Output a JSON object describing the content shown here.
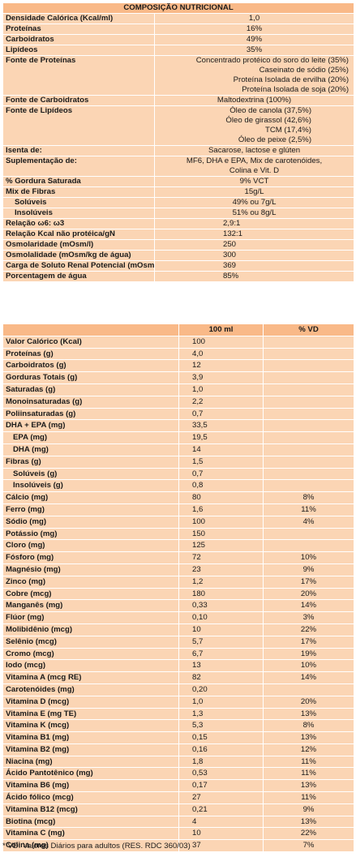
{
  "composition": {
    "title": "COMPOSIÇÃO NUTRICIONAL",
    "rows": [
      {
        "label": "Densidade Calórica (Kcal/ml)",
        "value": "1,0"
      },
      {
        "label": "Proteínas",
        "value": "16%"
      },
      {
        "label": "Carboidratos",
        "value": "49%"
      },
      {
        "label": "Lipídeos",
        "value": "35%"
      },
      {
        "label": "Fonte de Proteínas",
        "lines": [
          "Concentrado protéico do soro do leite (35%)",
          "Caseinato de sódio (25%)",
          "Proteína Isolada de ervilha (20%)",
          "Proteína Isolada de soja (20%)"
        ]
      },
      {
        "label": "Fonte de Carboidratos",
        "value": "Maltodextrina (100%)"
      },
      {
        "label": "Fonte de Lipídeos",
        "lines": [
          "Óleo de canola (37,5%)",
          "Óleo de girassol (42,6%)",
          "TCM (17,4%)",
          "Óleo de peixe (2,5%)"
        ]
      },
      {
        "label": "Isenta de:",
        "value": "Sacarose, lactose e glúten"
      },
      {
        "label": "Suplementação de:",
        "lines": [
          "MF6, DHA e EPA, Mix de carotenóides,",
          "Colina e Vit. D"
        ]
      },
      {
        "label": "% Gordura Saturada",
        "value": "9% VCT"
      },
      {
        "label": "Mix de Fibras",
        "value": "15g/L"
      },
      {
        "label": "Solúveis",
        "value": "49% ou 7g/L"
      },
      {
        "label": "Insolúveis",
        "value": "51% ou 8g/L"
      },
      {
        "label": "Relação ω6: ω3",
        "value": "2,9:1"
      },
      {
        "label": "Relação Kcal não protéica/gN",
        "value": "132:1"
      },
      {
        "label": "Osmolaridade (mOsm/l)",
        "value": "250"
      },
      {
        "label": "Osmolalidade (mOsm/kg de água)",
        "value": "300"
      },
      {
        "label": "Carga de Soluto Renal Potencial (mOsm/L)",
        "value": "369"
      },
      {
        "label": "Porcentagem de água",
        "value": "85%"
      }
    ]
  },
  "nutrition": {
    "headers": {
      "label": "",
      "amount": "100 ml",
      "vd": "% VD"
    },
    "rows": [
      {
        "label": "Valor Calórico (Kcal)",
        "amount": "100",
        "vd": ""
      },
      {
        "label": "Proteínas (g)",
        "amount": "4,0",
        "vd": ""
      },
      {
        "label": "Carboidratos (g)",
        "amount": "12",
        "vd": ""
      },
      {
        "label": "Gorduras Totais (g)",
        "amount": "3,9",
        "vd": ""
      },
      {
        "label": "Saturadas (g)",
        "amount": "1,0",
        "vd": ""
      },
      {
        "label": "Monoinsaturadas (g)",
        "amount": "2,2",
        "vd": ""
      },
      {
        "label": "Poliinsaturadas (g)",
        "amount": "0,7",
        "vd": ""
      },
      {
        "label": "DHA + EPA (mg)",
        "amount": "33,5",
        "vd": ""
      },
      {
        "label": "EPA (mg)",
        "amount": "19,5",
        "vd": ""
      },
      {
        "label": "DHA (mg)",
        "amount": "14",
        "vd": ""
      },
      {
        "label": "Fibras (g)",
        "amount": "1,5",
        "vd": ""
      },
      {
        "label": "Solúveis (g)",
        "amount": "0,7",
        "vd": ""
      },
      {
        "label": "Insolúveis (g)",
        "amount": "0,8",
        "vd": ""
      },
      {
        "label": "Cálcio (mg)",
        "amount": "80",
        "vd": "8%"
      },
      {
        "label": "Ferro (mg)",
        "amount": "1,6",
        "vd": "11%"
      },
      {
        "label": "Sódio (mg)",
        "amount": "100",
        "vd": "4%"
      },
      {
        "label": "Potássio (mg)",
        "amount": "150",
        "vd": ""
      },
      {
        "label": "Cloro (mg)",
        "amount": "125",
        "vd": ""
      },
      {
        "label": "Fósforo (mg)",
        "amount": "72",
        "vd": "10%"
      },
      {
        "label": "Magnésio (mg)",
        "amount": "23",
        "vd": "9%"
      },
      {
        "label": "Zinco (mg)",
        "amount": "1,2",
        "vd": "17%"
      },
      {
        "label": "Cobre (mcg)",
        "amount": "180",
        "vd": "20%"
      },
      {
        "label": "Manganês (mg)",
        "amount": "0,33",
        "vd": "14%"
      },
      {
        "label": "Flúor (mg)",
        "amount": "0,10",
        "vd": "3%"
      },
      {
        "label": "Molibidênio (mcg)",
        "amount": "10",
        "vd": "22%"
      },
      {
        "label": "Selênio (mcg)",
        "amount": "5,7",
        "vd": "17%"
      },
      {
        "label": "Cromo (mcg)",
        "amount": "6,7",
        "vd": "19%"
      },
      {
        "label": "Iodo (mcg)",
        "amount": "13",
        "vd": "10%"
      },
      {
        "label": "Vitamina A (mcg RE)",
        "amount": "82",
        "vd": "14%"
      },
      {
        "label": "Carotenóides (mg)",
        "amount": "0,20",
        "vd": ""
      },
      {
        "label": "Vitamina D (mcg)",
        "amount": "1,0",
        "vd": "20%"
      },
      {
        "label": "Vitamina E (mg TE)",
        "amount": "1,3",
        "vd": "13%"
      },
      {
        "label": "Vitamina K (mcg)",
        "amount": "5,3",
        "vd": "8%"
      },
      {
        "label": "Vitamina B1 (mg)",
        "amount": "0,15",
        "vd": "13%"
      },
      {
        "label": "Vitamina B2 (mg)",
        "amount": "0,16",
        "vd": "12%"
      },
      {
        "label": "Niacina (mg)",
        "amount": "1,8",
        "vd": "11%"
      },
      {
        "label": "Ácido Pantotênico (mg)",
        "amount": "0,53",
        "vd": "11%"
      },
      {
        "label": "Vitamina B6 (mg)",
        "amount": "0,17",
        "vd": "13%"
      },
      {
        "label": "Ácido fólico (mcg)",
        "amount": "27",
        "vd": "11%"
      },
      {
        "label": "Vitamina B12 (mcg)",
        "amount": "0,21",
        "vd": "9%"
      },
      {
        "label": "Biotina (mcg)",
        "amount": "4",
        "vd": "13%"
      },
      {
        "label": "Vitamina C (mg)",
        "amount": "10",
        "vd": "22%"
      },
      {
        "label": "Colina (mg)",
        "amount": "37",
        "vd": "7%"
      }
    ]
  },
  "footnote": "* VD: Valores Diários para adultos (RES. RDC 360/03)",
  "colors": {
    "row_fill": "#fbd5b4",
    "header_fill": "#f9b988",
    "border": "#ffffff"
  }
}
